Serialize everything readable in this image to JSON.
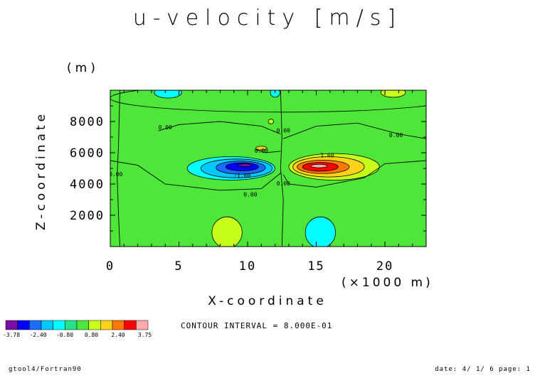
{
  "page": {
    "title": "u-velocity [m/s]",
    "y_unit": "(m)",
    "x_unit": "(×1000 m)",
    "contour_interval": "CONTOUR INTERVAL = 8.000E-01",
    "footer_left": "gtool4/Fortran90",
    "footer_right": "date: 4/ 1/ 6 page: 1"
  },
  "chart_data": {
    "type": "heatmap",
    "title": "u-velocity [m/s]",
    "xlabel": "X-coordinate",
    "ylabel": "Z-coordinate",
    "xlim": [
      0,
      23
    ],
    "ylim": [
      0,
      10000
    ],
    "x_ticks": [
      0,
      5,
      10,
      15,
      20
    ],
    "y_ticks": [
      2000,
      4000,
      6000,
      8000
    ],
    "contour_interval": 0.8,
    "contour_labels": [
      {
        "text": "0.00",
        "x": 4.0,
        "y": 7500
      },
      {
        "text": "0.00",
        "x": 12.6,
        "y": 7300
      },
      {
        "text": "0.00",
        "x": 20.8,
        "y": 7000
      },
      {
        "text": "0.00",
        "x": 11.0,
        "y": 6000
      },
      {
        "text": "0.00",
        "x": 0.4,
        "y": 4500
      },
      {
        "text": "1.60",
        "x": 15.8,
        "y": 5700
      },
      {
        "text": "-1.60",
        "x": 9.6,
        "y": 4400
      },
      {
        "text": "0.00",
        "x": 12.6,
        "y": 3900
      },
      {
        "text": "0.00",
        "x": 10.2,
        "y": 3200
      }
    ],
    "features": [
      {
        "name": "negative core",
        "x": 9.6,
        "y": 5100,
        "min": -3.78
      },
      {
        "name": "positive core",
        "x": 15.3,
        "y": 5100,
        "max": 3.75
      },
      {
        "name": "positive lower lobe",
        "x": 8.5,
        "y": 1000,
        "value": 0.8
      },
      {
        "name": "negative lower lobe",
        "x": 15.3,
        "y": 1000,
        "value": -0.8
      }
    ],
    "colorbar": {
      "colors": [
        "#7a0fa8",
        "#0000ff",
        "#1b6dff",
        "#00c8ff",
        "#00ffff",
        "#22e28a",
        "#4fe63a",
        "#c8ff1a",
        "#ffd21a",
        "#ff7800",
        "#ff0000",
        "#ffaaaa"
      ],
      "tick_labels": [
        "-3.78",
        "-2.40",
        "-0.80",
        "0.80",
        "2.40",
        "3.75"
      ]
    }
  }
}
